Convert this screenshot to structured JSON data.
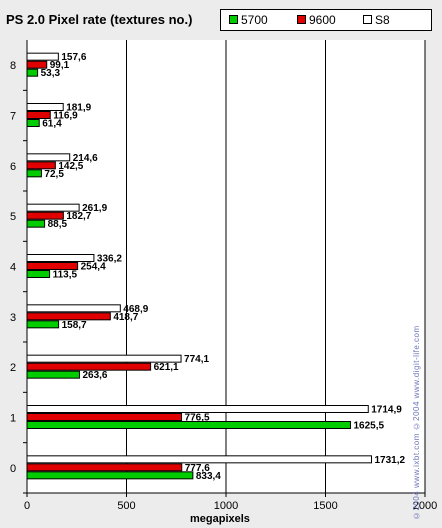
{
  "chart_data": {
    "type": "bar",
    "orientation": "horizontal",
    "title": "PS 2.0 Pixel rate (textures no.)",
    "xlabel": "megapixels",
    "ylabel": "",
    "categories": [
      "0",
      "1",
      "2",
      "3",
      "4",
      "5",
      "6",
      "7",
      "8"
    ],
    "series": [
      {
        "name": "S8",
        "color": "#ffffff",
        "values": [
          1731.2,
          1714.9,
          774.1,
          468.9,
          336.2,
          261.9,
          214.6,
          181.9,
          157.6
        ]
      },
      {
        "name": "9600",
        "color": "#e00000",
        "values": [
          777.6,
          776.5,
          621.1,
          418.7,
          254.4,
          182.7,
          142.5,
          116.9,
          99.1
        ]
      },
      {
        "name": "5700",
        "color": "#00cc00",
        "values": [
          833.4,
          1625.5,
          263.6,
          158.7,
          113.5,
          88.5,
          72.5,
          61.4,
          53.3
        ]
      }
    ],
    "data_labels": {
      "S8": [
        "1731,2",
        "1714,9",
        "774,1",
        "468,9",
        "336,2",
        "261,9",
        "214,6",
        "181,9",
        "157,6"
      ],
      "9600": [
        "777,6",
        "776,5",
        "621,1",
        "418,7",
        "254,4",
        "182,7",
        "142,5",
        "116,9",
        "99,1"
      ],
      "5700": [
        "833,4",
        "1625,5",
        "263,6",
        "158,7",
        "113,5",
        "88,5",
        "72,5",
        "61,4",
        "53,3"
      ]
    },
    "xlim": [
      0,
      2000
    ],
    "xticks": [
      "0",
      "500",
      "1000",
      "1500",
      "2000"
    ],
    "grid": true,
    "legend_position": "top-right",
    "legend_order": [
      "5700",
      "9600",
      "S8"
    ]
  },
  "watermark": "©2004 www.ixbt.com  ©2004 www.digit-life.com"
}
